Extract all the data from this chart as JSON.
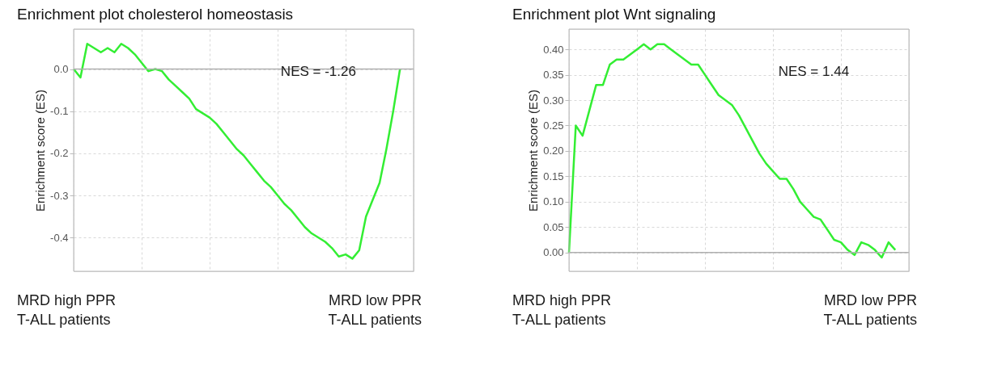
{
  "chart_data": [
    {
      "type": "line",
      "title": "Enrichment plot cholesterol homeostasis",
      "ylabel": "Enrichment score (ES)",
      "categories": [
        null,
        null,
        null,
        null,
        null,
        null,
        null,
        null,
        null,
        null,
        null,
        null,
        null,
        null,
        null,
        null,
        null,
        null,
        null,
        null,
        null,
        null,
        null,
        null,
        null,
        null,
        null,
        null,
        null,
        null,
        null,
        null,
        null,
        null,
        null,
        null,
        null,
        null,
        null,
        null,
        null,
        null,
        null,
        null,
        null,
        null,
        null,
        null,
        null,
        null,
        null
      ],
      "series": [
        {
          "color": "#33ee33",
          "values": [
            0.0,
            -0.02,
            0.06,
            0.05,
            0.04,
            0.05,
            0.04,
            0.06,
            0.05,
            0.035,
            0.015,
            -0.005,
            0.0,
            -0.005,
            -0.025,
            -0.04,
            -0.055,
            -0.07,
            -0.095,
            -0.105,
            -0.115,
            -0.13,
            -0.15,
            -0.17,
            -0.19,
            -0.205,
            -0.225,
            -0.245,
            -0.265,
            -0.28,
            -0.3,
            -0.32,
            -0.335,
            -0.355,
            -0.375,
            -0.39,
            -0.4,
            -0.41,
            -0.425,
            -0.445,
            -0.44,
            -0.45,
            -0.43,
            -0.35,
            -0.31,
            -0.27,
            -0.19,
            -0.1,
            0.0,
            null,
            null
          ]
        }
      ],
      "ylim": [
        -0.48,
        0.095
      ],
      "yticks": [
        {
          "value": 0,
          "label": "0.0"
        },
        -0.1,
        -0.2,
        -0.3,
        -0.4
      ],
      "ref_lines": [
        {
          "axis": "y",
          "value": 0,
          "color": "#b0b0b0"
        }
      ],
      "grid": true,
      "tick_labels": "y",
      "marker": "none",
      "line_style": "solid",
      "annotations": [
        "NES = -1.26",
        "MRD high PPR\nT-ALL patients",
        "MRD low PPR\nT-ALL patients"
      ]
    },
    {
      "type": "line",
      "title": "Enrichment plot Wnt signaling",
      "ylabel": "Enrichment score (ES)",
      "categories": [
        null,
        null,
        null,
        null,
        null,
        null,
        null,
        null,
        null,
        null,
        null,
        null,
        null,
        null,
        null,
        null,
        null,
        null,
        null,
        null,
        null,
        null,
        null,
        null,
        null,
        null,
        null,
        null,
        null,
        null,
        null,
        null,
        null,
        null,
        null,
        null,
        null,
        null,
        null,
        null,
        null,
        null,
        null,
        null,
        null,
        null,
        null,
        null,
        null,
        null,
        null
      ],
      "series": [
        {
          "color": "#33ee33",
          "values": [
            0.0,
            0.25,
            0.23,
            0.28,
            0.33,
            0.33,
            0.37,
            0.38,
            0.38,
            0.39,
            0.4,
            0.41,
            0.4,
            0.41,
            0.41,
            0.4,
            0.39,
            0.38,
            0.37,
            0.37,
            0.35,
            0.33,
            0.31,
            0.3,
            0.29,
            0.27,
            0.245,
            0.22,
            0.195,
            0.175,
            0.16,
            0.145,
            0.145,
            0.125,
            0.1,
            0.085,
            0.07,
            0.065,
            0.045,
            0.025,
            0.02,
            0.005,
            -0.005,
            0.02,
            0.015,
            0.005,
            -0.01,
            0.02,
            0.005,
            null,
            null
          ]
        }
      ],
      "ylim": [
        -0.037,
        0.44
      ],
      "yticks": [
        {
          "value": 0,
          "label": "0.00"
        },
        {
          "value": 0.05,
          "label": "0.05"
        },
        {
          "value": 0.1,
          "label": "0.10"
        },
        {
          "value": 0.15,
          "label": "0.15"
        },
        {
          "value": 0.2,
          "label": "0.20"
        },
        {
          "value": 0.25,
          "label": "0.25"
        },
        {
          "value": 0.3,
          "label": "0.30"
        },
        {
          "value": 0.35,
          "label": "0.35"
        },
        {
          "value": 0.4,
          "label": "0.40"
        }
      ],
      "ref_lines": [
        {
          "axis": "y",
          "value": 0,
          "color": "#b0b0b0"
        }
      ],
      "grid": true,
      "tick_labels": "y",
      "marker": "none",
      "line_style": "solid",
      "annotations": [
        "NES = 1.44",
        "MRD high PPR\nT-ALL patients",
        "MRD low PPR\nT-ALL patients"
      ]
    }
  ]
}
